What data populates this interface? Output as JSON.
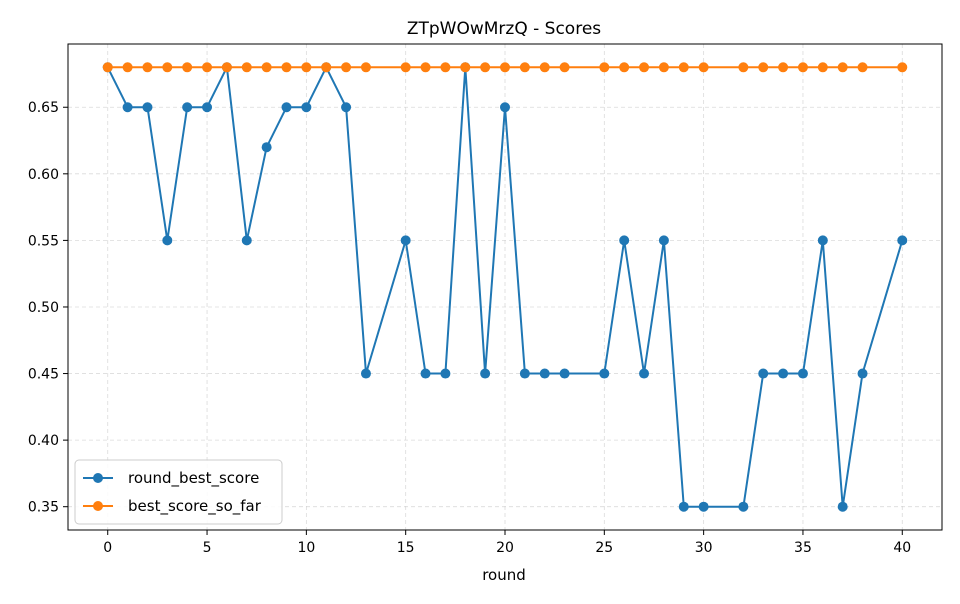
{
  "chart_data": {
    "type": "line",
    "title": "ZTpWOwMrzQ - Scores",
    "xlabel": "round",
    "ylabel": "",
    "xlim": [
      -2,
      42
    ],
    "ylim": [
      0.3325,
      0.6975
    ],
    "grid": true,
    "legend_position": "bottom-left",
    "xticks": [
      0,
      5,
      10,
      15,
      20,
      25,
      30,
      35,
      40
    ],
    "yticks": [
      0.35,
      0.4,
      0.45,
      0.5,
      0.55,
      0.6,
      0.65
    ],
    "ytick_labels": [
      "0.35",
      "0.40",
      "0.45",
      "0.50",
      "0.55",
      "0.60",
      "0.65"
    ],
    "x": [
      0,
      1,
      2,
      3,
      4,
      5,
      6,
      7,
      8,
      9,
      10,
      11,
      12,
      13,
      15,
      16,
      17,
      18,
      19,
      20,
      21,
      22,
      23,
      25,
      26,
      27,
      28,
      29,
      30,
      32,
      33,
      34,
      35,
      36,
      37,
      38,
      40
    ],
    "series": [
      {
        "name": "round_best_score",
        "color": "#1f77b4",
        "values": [
          0.68,
          0.65,
          0.65,
          0.55,
          0.65,
          0.65,
          0.68,
          0.55,
          0.62,
          0.65,
          0.65,
          0.68,
          0.65,
          0.45,
          0.55,
          0.45,
          0.45,
          0.68,
          0.45,
          0.65,
          0.45,
          0.45,
          0.45,
          0.45,
          0.55,
          0.45,
          0.55,
          0.35,
          0.35,
          0.35,
          0.45,
          0.45,
          0.45,
          0.55,
          0.35,
          0.45,
          0.55
        ]
      },
      {
        "name": "best_score_so_far",
        "color": "#ff7f0e",
        "values": [
          0.68,
          0.68,
          0.68,
          0.68,
          0.68,
          0.68,
          0.68,
          0.68,
          0.68,
          0.68,
          0.68,
          0.68,
          0.68,
          0.68,
          0.68,
          0.68,
          0.68,
          0.68,
          0.68,
          0.68,
          0.68,
          0.68,
          0.68,
          0.68,
          0.68,
          0.68,
          0.68,
          0.68,
          0.68,
          0.68,
          0.68,
          0.68,
          0.68,
          0.68,
          0.68,
          0.68,
          0.68
        ]
      }
    ]
  }
}
